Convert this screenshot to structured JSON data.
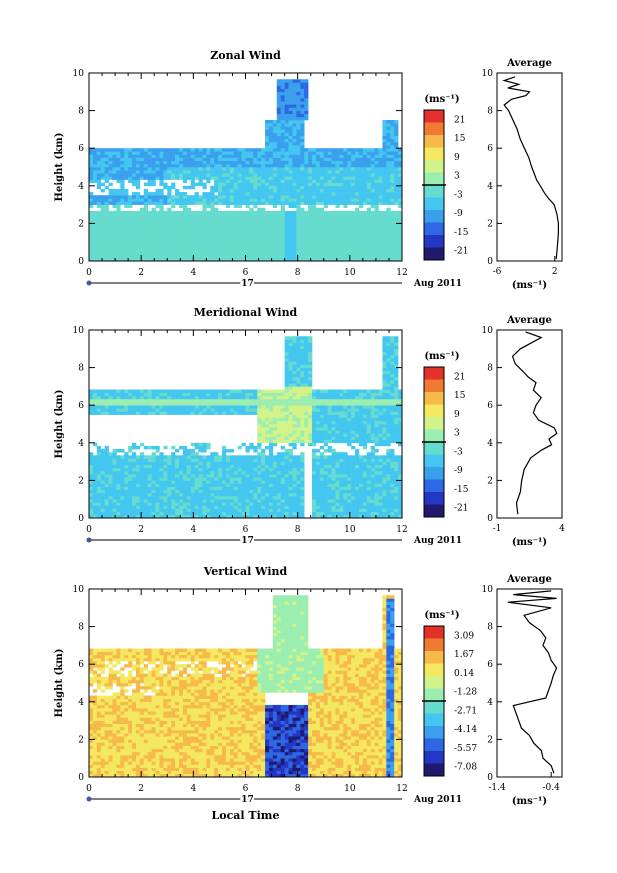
{
  "figure": {
    "date_label": "Aug 2011",
    "day_label": "17",
    "time_axis_label": "Local Time",
    "height_axis_label": "Height (km)",
    "unit_label": "(ms⁻¹)",
    "average_title": "Average",
    "colormap": [
      "#1f1a6e",
      "#2436c4",
      "#2d67e3",
      "#3aa0ee",
      "#43c7f0",
      "#66dccf",
      "#9ceeb0",
      "#d2f38a",
      "#f4e860",
      "#f6b94a",
      "#f07a32",
      "#e3302a"
    ]
  },
  "chart_data": [
    {
      "type": "heatmap",
      "title": "Zonal Wind",
      "ylabel": "Height (km)",
      "xlim": [
        0,
        12
      ],
      "ylim": [
        0,
        10
      ],
      "x_ticks": [
        "0",
        "2",
        "4",
        "6",
        "8",
        "10",
        "12"
      ],
      "y_ticks": [
        "0",
        "2",
        "4",
        "6",
        "8",
        "10"
      ],
      "colorbar": {
        "labels": [
          "21",
          "15",
          "9",
          "3",
          "-3",
          "-9",
          "-15",
          "-21"
        ],
        "range": [
          -24,
          24
        ]
      },
      "average": {
        "title": "Average",
        "xlim": [
          -6,
          3
        ],
        "x_ticks": [
          "-6",
          "2"
        ],
        "xlabel": "(ms⁻¹)",
        "profile": [
          [
            0.1,
            2.2
          ],
          [
            0.5,
            2.3
          ],
          [
            1.0,
            2.4
          ],
          [
            1.5,
            2.5
          ],
          [
            2.0,
            2.5
          ],
          [
            2.5,
            2.3
          ],
          [
            3.0,
            1.9
          ],
          [
            3.3,
            1.2
          ],
          [
            3.6,
            0.6
          ],
          [
            4.0,
            0.0
          ],
          [
            4.3,
            -0.5
          ],
          [
            4.6,
            -0.8
          ],
          [
            5.0,
            -1.2
          ],
          [
            5.5,
            -1.6
          ],
          [
            6.0,
            -2.2
          ],
          [
            6.5,
            -2.8
          ],
          [
            7.0,
            -3.2
          ],
          [
            7.5,
            -3.8
          ],
          [
            8.0,
            -4.4
          ],
          [
            8.3,
            -5.0
          ],
          [
            8.6,
            -4.0
          ],
          [
            8.8,
            -2.0
          ],
          [
            9.0,
            -1.5
          ],
          [
            9.2,
            -4.5
          ],
          [
            9.4,
            -3.0
          ],
          [
            9.6,
            -5.0
          ],
          [
            9.8,
            -3.5
          ]
        ]
      }
    },
    {
      "type": "heatmap",
      "title": "Meridional Wind",
      "ylabel": "Height (km)",
      "xlim": [
        0,
        12
      ],
      "ylim": [
        0,
        10
      ],
      "x_ticks": [
        "0",
        "2",
        "4",
        "6",
        "8",
        "10",
        "12"
      ],
      "y_ticks": [
        "0",
        "2",
        "4",
        "6",
        "8",
        "10"
      ],
      "colorbar": {
        "labels": [
          "21",
          "15",
          "9",
          "3",
          "-3",
          "-9",
          "-15",
          "-21"
        ],
        "range": [
          -24,
          24
        ]
      },
      "average": {
        "title": "Average",
        "xlim": [
          -1,
          4
        ],
        "x_ticks": [
          "-1",
          "4"
        ],
        "xlabel": "(ms⁻¹)",
        "profile": [
          [
            0.2,
            0.6
          ],
          [
            0.8,
            0.5
          ],
          [
            1.4,
            0.8
          ],
          [
            2.0,
            0.9
          ],
          [
            2.6,
            1.1
          ],
          [
            3.2,
            1.6
          ],
          [
            3.6,
            2.4
          ],
          [
            3.9,
            3.2
          ],
          [
            4.2,
            3.0
          ],
          [
            4.5,
            3.6
          ],
          [
            4.8,
            3.4
          ],
          [
            5.2,
            2.2
          ],
          [
            5.6,
            1.8
          ],
          [
            6.0,
            2.0
          ],
          [
            6.4,
            2.4
          ],
          [
            6.8,
            1.8
          ],
          [
            7.2,
            2.0
          ],
          [
            7.5,
            1.4
          ],
          [
            7.8,
            1.0
          ],
          [
            8.2,
            0.4
          ],
          [
            8.6,
            0.2
          ],
          [
            9.0,
            0.8
          ],
          [
            9.3,
            1.6
          ],
          [
            9.6,
            2.4
          ],
          [
            9.9,
            1.2
          ]
        ]
      }
    },
    {
      "type": "heatmap",
      "title": "Vertical Wind",
      "ylabel": "Height (km)",
      "xlabel": "Local Time",
      "xlim": [
        0,
        12
      ],
      "ylim": [
        0,
        10
      ],
      "x_ticks": [
        "0",
        "2",
        "4",
        "6",
        "8",
        "10",
        "12"
      ],
      "y_ticks": [
        "0",
        "2",
        "4",
        "6",
        "8",
        "10"
      ],
      "colorbar": {
        "labels": [
          "3.09",
          "1.67",
          "0.14",
          "-1.28",
          "-2.71",
          "-4.14",
          "-5.57",
          "-7.08"
        ],
        "range": [
          -8.0,
          4.0
        ]
      },
      "average": {
        "title": "Average",
        "xlim": [
          -1.4,
          -0.2
        ],
        "x_ticks": [
          "-1.4",
          "-0.4"
        ],
        "xlabel": "(ms⁻¹)",
        "profile": [
          [
            0.2,
            -0.35
          ],
          [
            0.6,
            -0.4
          ],
          [
            1.0,
            -0.55
          ],
          [
            1.4,
            -0.58
          ],
          [
            1.8,
            -0.72
          ],
          [
            2.2,
            -0.8
          ],
          [
            2.6,
            -0.95
          ],
          [
            3.0,
            -1.0
          ],
          [
            3.4,
            -1.05
          ],
          [
            3.8,
            -1.1
          ],
          [
            4.2,
            -0.5
          ],
          [
            4.6,
            -0.45
          ],
          [
            5.0,
            -0.4
          ],
          [
            5.4,
            -0.36
          ],
          [
            5.8,
            -0.3
          ],
          [
            6.2,
            -0.4
          ],
          [
            6.6,
            -0.45
          ],
          [
            7.0,
            -0.55
          ],
          [
            7.4,
            -0.5
          ],
          [
            7.8,
            -0.6
          ],
          [
            8.2,
            -0.8
          ],
          [
            8.6,
            -0.9
          ],
          [
            9.0,
            -0.4
          ],
          [
            9.3,
            -1.2
          ],
          [
            9.5,
            -0.3
          ],
          [
            9.7,
            -1.1
          ],
          [
            9.9,
            -0.4
          ]
        ]
      }
    }
  ]
}
